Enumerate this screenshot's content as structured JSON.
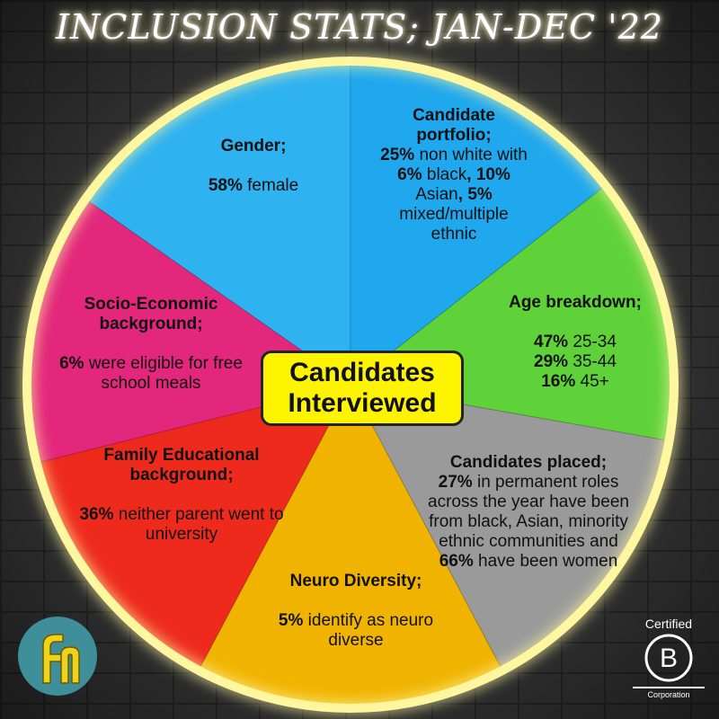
{
  "title": "INCLUSION STATS; JAN-DEC '22",
  "center": {
    "line1": "Candidates",
    "line2": "Interviewed"
  },
  "colors": {
    "ring": "#fff176",
    "gender": "#2fb2f0",
    "portfolio": "#1fa8ee",
    "age": "#5fd23a",
    "placed": "#9a9a9a",
    "neuro": "#f0b400",
    "family": "#ee2a1d",
    "socio": "#e3277c",
    "center_bg": "#fff400"
  },
  "segments": {
    "gender": {
      "heading": "Gender;",
      "stat": "58%",
      "text": "female"
    },
    "portfolio": {
      "heading": "Candidate portfolio;",
      "stat1": "25%",
      "text1": "non white with",
      "stat2": "6%",
      "text2": "black",
      "stat3": "10%",
      "text3": "Asian",
      "stat4": "5%",
      "text4": "mixed/multiple ethnic"
    },
    "age": {
      "heading": "Age breakdown;",
      "rows": [
        {
          "stat": "47%",
          "label": "25-34"
        },
        {
          "stat": "29%",
          "label": "35-44"
        },
        {
          "stat": "16%",
          "label": "45+"
        }
      ]
    },
    "placed": {
      "heading": "Candidates placed;",
      "stat1": "27%",
      "text1": "in permanent roles across the year have been from black, Asian, minority ethnic communities and",
      "stat2": "66%",
      "text2": "have been women"
    },
    "neuro": {
      "heading": "Neuro Diversity;",
      "stat": "5%",
      "text": "identify as neuro diverse"
    },
    "family": {
      "heading": "Family Educational background;",
      "stat": "36%",
      "text": "neither parent went to university"
    },
    "socio": {
      "heading": "Socio-Economic background;",
      "stat": "6%",
      "text": "were eligible for free school meals"
    }
  },
  "logos": {
    "left_icon": "fc-brand-logo",
    "bcorp_top": "Certified",
    "bcorp_letter": "B",
    "bcorp_bottom": "Corporation"
  }
}
